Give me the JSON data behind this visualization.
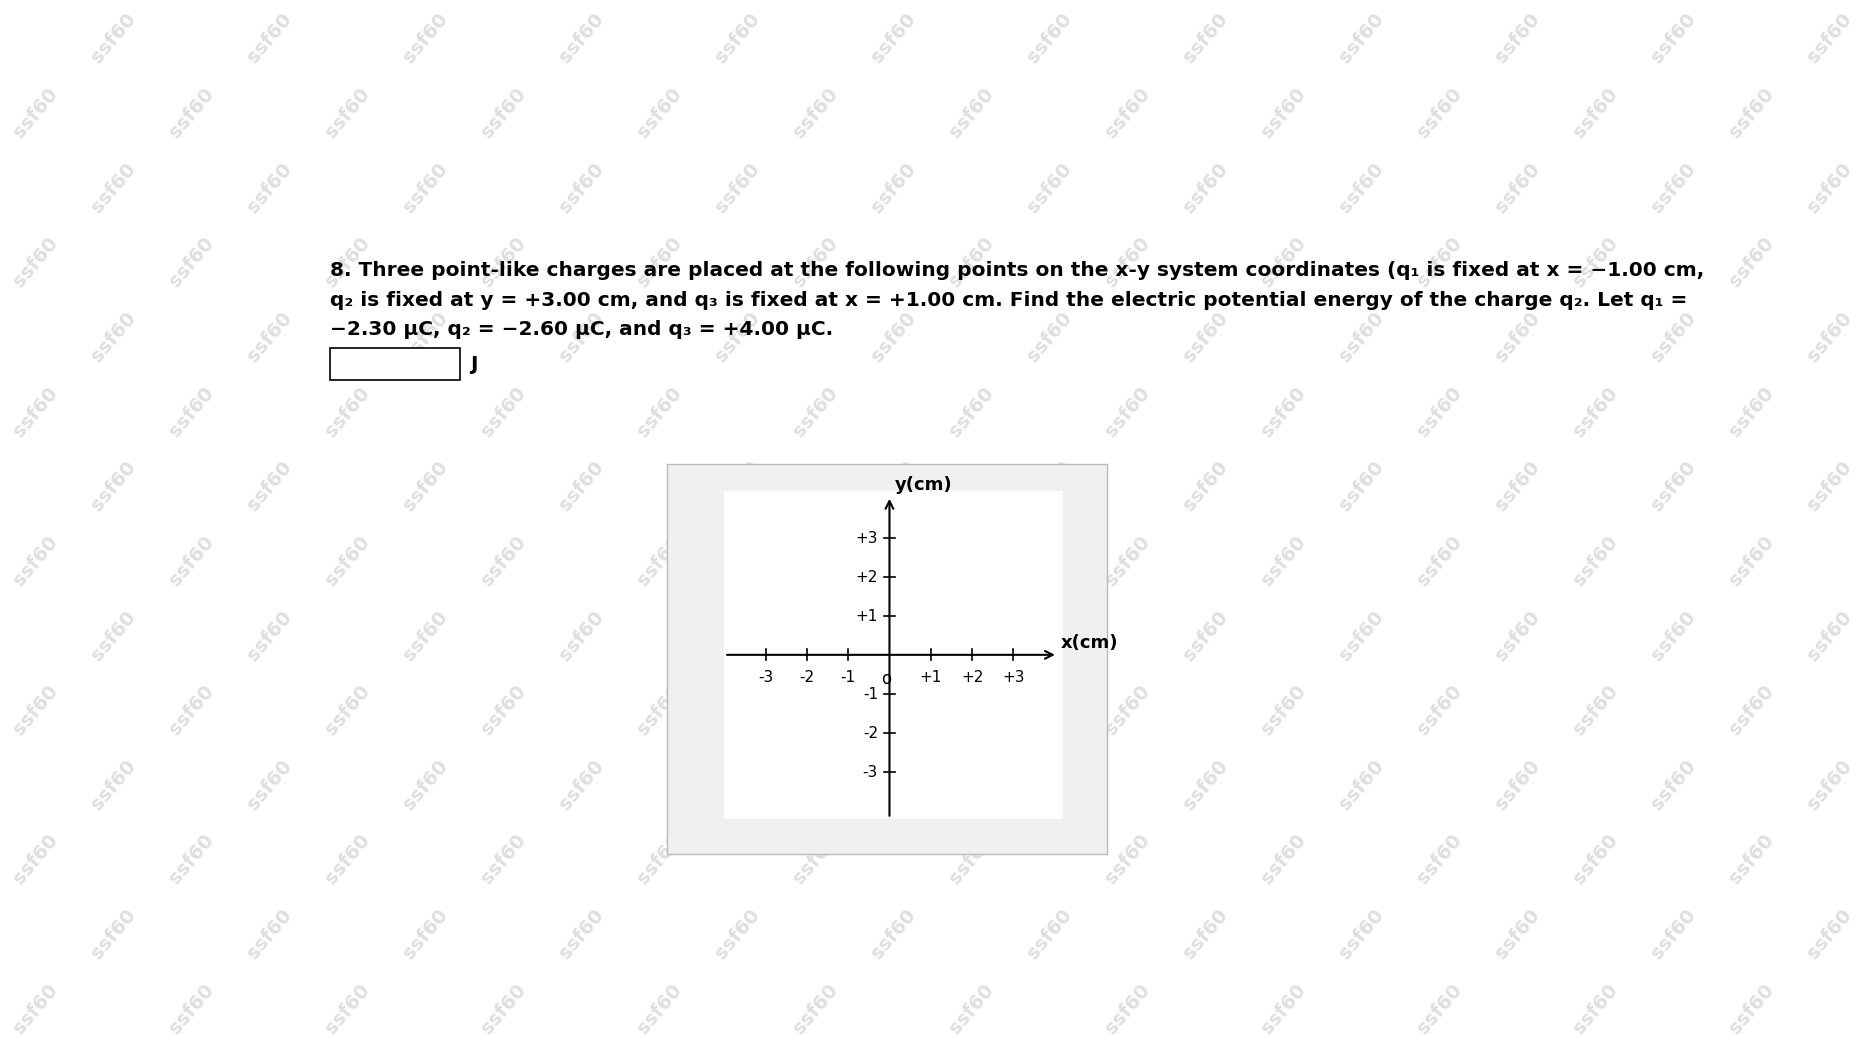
{
  "background_color": "#ffffff",
  "watermark_text": "ssf60",
  "watermark_color": "#b0b0b0",
  "watermark_alpha": 0.4,
  "watermark_fontsize": 14,
  "watermark_rotation": 50,
  "text_line1": "8. Three point-like charges are placed at the following points on the x-y system coordinates (q₁ is fixed at x = −1.00 cm,",
  "text_line2": "q₂ is fixed at y = +3.00 cm, and q₃ is fixed at x = +1.00 cm. Find the electric potential energy of the charge q₂. Let q₁ =",
  "text_line3": "−2.30 μC, q₂ = −2.60 μC, and q₃ = +4.00 μC.",
  "answer_label": "J",
  "text_fontsize": 14.5,
  "axis_label_fontsize": 13,
  "tick_fontsize": 11,
  "panel_bg": "#f0f0f0",
  "panel_edge": "#bbbbbb",
  "axis_xlim": [
    -4.0,
    4.2
  ],
  "axis_ylim": [
    -4.2,
    4.2
  ],
  "x_ticks": [
    -3,
    -2,
    -1,
    0,
    1,
    2,
    3
  ],
  "y_ticks": [
    -3,
    -2,
    -1,
    1,
    2,
    3
  ],
  "x_tick_labels": [
    "-3",
    "-2",
    "-1",
    "o",
    "+1",
    "+2",
    "+3"
  ],
  "y_tick_labels_pos": [
    "-3",
    "-2",
    "-1",
    "+1",
    "+2",
    "+3"
  ],
  "xlabel": "x(cm)",
  "ylabel": "y(cm)"
}
